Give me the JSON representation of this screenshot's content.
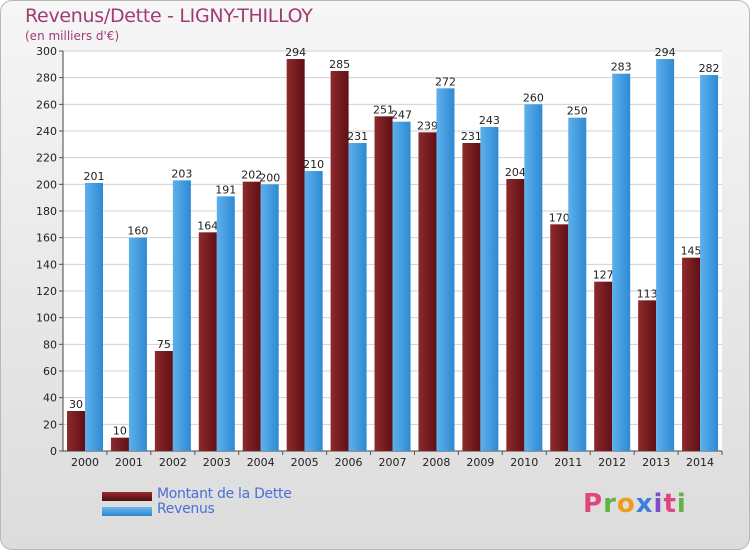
{
  "header": {
    "title": "Revenus/Dette - LIGNY-THILLOY",
    "subtitle": "(en milliers d'€)"
  },
  "legend": {
    "items": [
      {
        "label": "Montant de la Dette",
        "color": "#7a1f22"
      },
      {
        "label": "Revenus",
        "color": "#3d9be0"
      }
    ]
  },
  "logo": {
    "text": "Proxiti",
    "colors": [
      "#e0457b",
      "#5fb544",
      "#f29a1d",
      "#3d7fe0",
      "#7a4fc9",
      "#e0457b",
      "#5fb544"
    ]
  },
  "chart_data": {
    "type": "bar",
    "categories": [
      "2000",
      "2001",
      "2002",
      "2003",
      "2004",
      "2005",
      "2006",
      "2007",
      "2008",
      "2009",
      "2010",
      "2011",
      "2012",
      "2013",
      "2014"
    ],
    "series": [
      {
        "name": "Montant de la Dette",
        "color": "#7a1f22",
        "values": [
          30,
          10,
          75,
          164,
          202,
          294,
          285,
          251,
          239,
          231,
          204,
          170,
          127,
          113,
          145
        ]
      },
      {
        "name": "Revenus",
        "color": "#3d9be0",
        "values": [
          201,
          160,
          203,
          191,
          200,
          210,
          231,
          247,
          272,
          243,
          260,
          250,
          283,
          294,
          282
        ]
      }
    ],
    "ylim": [
      0,
      300
    ],
    "yticks": [
      0,
      20,
      40,
      60,
      80,
      100,
      120,
      140,
      160,
      180,
      200,
      220,
      240,
      260,
      280,
      300
    ],
    "grid": true,
    "legend_position": "bottom-left"
  }
}
